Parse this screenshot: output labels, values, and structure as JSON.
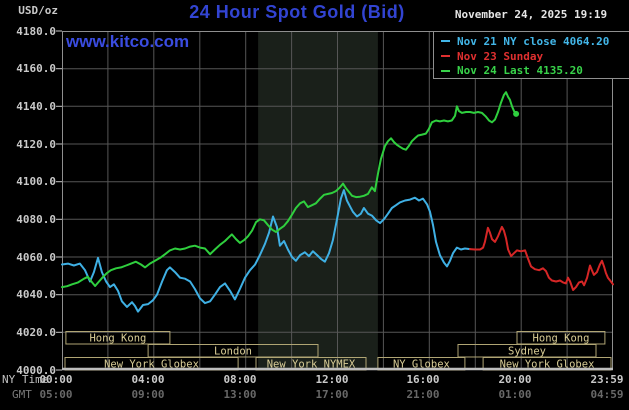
{
  "header": {
    "units_label": "USD/oz",
    "title": "24 Hour Spot Gold (Bid)",
    "timestamp": "November 24, 2025 19:19",
    "watermark": "www.kitco.com"
  },
  "legend": {
    "items": [
      {
        "label": "Nov 21 NY close 4064.20",
        "color": "#42b6e8"
      },
      {
        "label": "Nov 23 Sunday",
        "color": "#e03030"
      },
      {
        "label": "Nov 24 Last 4135.20",
        "color": "#38d24a"
      }
    ]
  },
  "axes": {
    "y_ticks": [
      "4180.0",
      "4160.0",
      "4140.0",
      "4120.0",
      "4100.0",
      "4080.0",
      "4060.0",
      "4040.0",
      "4020.0",
      "4000.0"
    ],
    "x_row1_label": "NY Time",
    "x_row2_label": "GMT",
    "x_tick_hours": [
      0,
      4,
      8,
      12,
      16,
      20,
      23.983
    ],
    "x_ticks_ny": [
      "00:00",
      "04:00",
      "08:00",
      "12:00",
      "16:00",
      "20:00",
      "23:59"
    ],
    "x_ticks_gmt": [
      "05:00",
      "09:00",
      "13:00",
      "17:00",
      "21:00",
      "01:00",
      "04:59"
    ]
  },
  "chart_data": {
    "type": "line",
    "title": "24 Hour Spot Gold (Bid)",
    "ylabel": "USD/oz",
    "ylim": [
      4000,
      4180
    ],
    "y_grid_step": 20,
    "x_hours": [
      0,
      24
    ],
    "x_grid_step_hours": 2,
    "grid": true,
    "legend_position": "top-right",
    "grid_color": "#565656",
    "border_color": "#8f8f8f",
    "bottom_border_color": "#bdbdbd",
    "shaded_session_hours": [
      8.54,
      13.76
    ],
    "shaded_band_color": "#1a201a",
    "series": [
      {
        "name": "Nov 21 NY close",
        "close_value": 4064.2,
        "color": "#3fb0e4",
        "points": [
          [
            0,
            4056
          ],
          [
            0.26,
            4056.5
          ],
          [
            0.52,
            4055.5
          ],
          [
            0.78,
            4056.5
          ],
          [
            1.0,
            4053
          ],
          [
            1.22,
            4047
          ],
          [
            1.39,
            4052
          ],
          [
            1.57,
            4059.5
          ],
          [
            1.74,
            4052
          ],
          [
            1.92,
            4047
          ],
          [
            2.09,
            4044
          ],
          [
            2.26,
            4045.5
          ],
          [
            2.44,
            4042
          ],
          [
            2.61,
            4036.5
          ],
          [
            2.83,
            4033.5
          ],
          [
            3.05,
            4036
          ],
          [
            3.18,
            4034
          ],
          [
            3.31,
            4031
          ],
          [
            3.53,
            4034.5
          ],
          [
            3.75,
            4035
          ],
          [
            3.96,
            4037
          ],
          [
            4.14,
            4040
          ],
          [
            4.36,
            4047
          ],
          [
            4.57,
            4053
          ],
          [
            4.7,
            4054.5
          ],
          [
            4.92,
            4052
          ],
          [
            5.14,
            4049
          ],
          [
            5.36,
            4048.5
          ],
          [
            5.58,
            4047
          ],
          [
            5.79,
            4043
          ],
          [
            6.01,
            4038
          ],
          [
            6.23,
            4035.5
          ],
          [
            6.45,
            4036.5
          ],
          [
            6.66,
            4040
          ],
          [
            6.88,
            4044
          ],
          [
            7.1,
            4046
          ],
          [
            7.32,
            4042
          ],
          [
            7.53,
            4037.5
          ],
          [
            7.75,
            4043
          ],
          [
            7.97,
            4049
          ],
          [
            8.19,
            4053
          ],
          [
            8.41,
            4056
          ],
          [
            8.62,
            4061
          ],
          [
            8.84,
            4067
          ],
          [
            9.02,
            4073
          ],
          [
            9.19,
            4081.5
          ],
          [
            9.36,
            4076
          ],
          [
            9.49,
            4066
          ],
          [
            9.67,
            4068.5
          ],
          [
            9.84,
            4064
          ],
          [
            10.02,
            4060
          ],
          [
            10.19,
            4058
          ],
          [
            10.37,
            4061
          ],
          [
            10.58,
            4062.5
          ],
          [
            10.76,
            4060.5
          ],
          [
            10.93,
            4063
          ],
          [
            11.11,
            4061
          ],
          [
            11.28,
            4059
          ],
          [
            11.45,
            4057.5
          ],
          [
            11.63,
            4062
          ],
          [
            11.8,
            4069
          ],
          [
            11.98,
            4080
          ],
          [
            12.15,
            4091
          ],
          [
            12.28,
            4095.5
          ],
          [
            12.41,
            4090
          ],
          [
            12.54,
            4087
          ],
          [
            12.67,
            4084
          ],
          [
            12.85,
            4081.5
          ],
          [
            13.02,
            4083
          ],
          [
            13.15,
            4086
          ],
          [
            13.33,
            4083
          ],
          [
            13.5,
            4082
          ],
          [
            13.68,
            4079.5
          ],
          [
            13.85,
            4078
          ],
          [
            14.02,
            4080
          ],
          [
            14.2,
            4083
          ],
          [
            14.37,
            4086
          ],
          [
            14.55,
            4087.5
          ],
          [
            14.72,
            4089
          ],
          [
            14.94,
            4090
          ],
          [
            15.16,
            4090.5
          ],
          [
            15.37,
            4091.5
          ],
          [
            15.55,
            4090
          ],
          [
            15.72,
            4091
          ],
          [
            15.9,
            4088
          ],
          [
            16.03,
            4084
          ],
          [
            16.16,
            4077
          ],
          [
            16.29,
            4068
          ],
          [
            16.46,
            4061
          ],
          [
            16.64,
            4057
          ],
          [
            16.77,
            4055
          ],
          [
            16.9,
            4058
          ],
          [
            17.03,
            4062
          ],
          [
            17.2,
            4065
          ],
          [
            17.38,
            4064
          ],
          [
            17.55,
            4064.5
          ],
          [
            17.77,
            4064.2
          ]
        ]
      },
      {
        "name": "Nov 23 Sunday",
        "color": "#d62626",
        "points": [
          [
            17.77,
            4064.2
          ],
          [
            17.99,
            4064
          ],
          [
            18.21,
            4064
          ],
          [
            18.34,
            4065
          ],
          [
            18.42,
            4068
          ],
          [
            18.55,
            4075.5
          ],
          [
            18.64,
            4073
          ],
          [
            18.73,
            4069.5
          ],
          [
            18.86,
            4068
          ],
          [
            18.99,
            4071
          ],
          [
            19.16,
            4076
          ],
          [
            19.25,
            4074
          ],
          [
            19.34,
            4070
          ],
          [
            19.43,
            4064
          ],
          [
            19.56,
            4060.5
          ],
          [
            19.69,
            4062
          ],
          [
            19.82,
            4063.5
          ],
          [
            19.99,
            4063
          ],
          [
            20.17,
            4063.5
          ],
          [
            20.3,
            4059
          ],
          [
            20.43,
            4055
          ],
          [
            20.6,
            4053.5
          ],
          [
            20.78,
            4053
          ],
          [
            20.95,
            4054
          ],
          [
            21.08,
            4052.5
          ],
          [
            21.21,
            4049
          ],
          [
            21.34,
            4047.5
          ],
          [
            21.52,
            4047
          ],
          [
            21.69,
            4047.5
          ],
          [
            21.82,
            4046.5
          ],
          [
            21.95,
            4046
          ],
          [
            22.04,
            4049
          ],
          [
            22.13,
            4047
          ],
          [
            22.26,
            4042.5
          ],
          [
            22.39,
            4044
          ],
          [
            22.52,
            4046.5
          ],
          [
            22.65,
            4047
          ],
          [
            22.74,
            4045
          ],
          [
            22.87,
            4049
          ],
          [
            23.0,
            4055.5
          ],
          [
            23.08,
            4053
          ],
          [
            23.17,
            4050.5
          ],
          [
            23.3,
            4052
          ],
          [
            23.43,
            4056
          ],
          [
            23.52,
            4058
          ],
          [
            23.61,
            4055
          ],
          [
            23.69,
            4051.5
          ],
          [
            23.78,
            4049
          ],
          [
            23.91,
            4047
          ],
          [
            24.0,
            4045.5
          ]
        ]
      },
      {
        "name": "Nov 24 Last",
        "last_value": 4135.2,
        "color": "#2fcf3e",
        "end_marker": true,
        "points": [
          [
            0,
            4044
          ],
          [
            0.22,
            4044.5
          ],
          [
            0.44,
            4045.5
          ],
          [
            0.7,
            4046.5
          ],
          [
            0.96,
            4048.5
          ],
          [
            1.13,
            4049.5
          ],
          [
            1.31,
            4046.5
          ],
          [
            1.44,
            4044.6
          ],
          [
            1.61,
            4047
          ],
          [
            1.79,
            4049.5
          ],
          [
            1.96,
            4051.5
          ],
          [
            2.13,
            4053
          ],
          [
            2.35,
            4054
          ],
          [
            2.57,
            4054.5
          ],
          [
            2.79,
            4055.5
          ],
          [
            3.01,
            4056.5
          ],
          [
            3.22,
            4057.5
          ],
          [
            3.44,
            4056
          ],
          [
            3.62,
            4054.5
          ],
          [
            3.83,
            4056.5
          ],
          [
            4.05,
            4058
          ],
          [
            4.27,
            4059.5
          ],
          [
            4.49,
            4061.5
          ],
          [
            4.7,
            4063.5
          ],
          [
            4.92,
            4064.5
          ],
          [
            5.14,
            4064
          ],
          [
            5.36,
            4064.5
          ],
          [
            5.58,
            4065.5
          ],
          [
            5.79,
            4066
          ],
          [
            6.01,
            4065
          ],
          [
            6.23,
            4064.5
          ],
          [
            6.45,
            4061.5
          ],
          [
            6.66,
            4064
          ],
          [
            6.88,
            4066.5
          ],
          [
            7.1,
            4068.5
          ],
          [
            7.27,
            4070.5
          ],
          [
            7.4,
            4072
          ],
          [
            7.58,
            4069.5
          ],
          [
            7.75,
            4067.5
          ],
          [
            7.93,
            4069
          ],
          [
            8.1,
            4071
          ],
          [
            8.28,
            4074
          ],
          [
            8.45,
            4078.5
          ],
          [
            8.62,
            4080
          ],
          [
            8.8,
            4079.5
          ],
          [
            8.97,
            4077
          ],
          [
            9.15,
            4074.5
          ],
          [
            9.32,
            4073.3
          ],
          [
            9.49,
            4075
          ],
          [
            9.67,
            4076.5
          ],
          [
            9.84,
            4079
          ],
          [
            10.02,
            4082.5
          ],
          [
            10.19,
            4086
          ],
          [
            10.37,
            4088.5
          ],
          [
            10.54,
            4089.5
          ],
          [
            10.71,
            4086.5
          ],
          [
            10.89,
            4087.5
          ],
          [
            11.06,
            4088.5
          ],
          [
            11.24,
            4091
          ],
          [
            11.41,
            4093
          ],
          [
            11.59,
            4093.5
          ],
          [
            11.76,
            4094
          ],
          [
            11.93,
            4095
          ],
          [
            12.11,
            4097
          ],
          [
            12.24,
            4099
          ],
          [
            12.37,
            4096.5
          ],
          [
            12.5,
            4094.5
          ],
          [
            12.63,
            4092.5
          ],
          [
            12.81,
            4091.8
          ],
          [
            12.98,
            4092
          ],
          [
            13.15,
            4092.5
          ],
          [
            13.33,
            4093.5
          ],
          [
            13.5,
            4097
          ],
          [
            13.63,
            4095
          ],
          [
            13.76,
            4104
          ],
          [
            13.89,
            4112
          ],
          [
            14.07,
            4119
          ],
          [
            14.2,
            4121.5
          ],
          [
            14.33,
            4123
          ],
          [
            14.46,
            4121
          ],
          [
            14.59,
            4119.5
          ],
          [
            14.72,
            4118.5
          ],
          [
            14.85,
            4117.5
          ],
          [
            14.98,
            4117
          ],
          [
            15.11,
            4119
          ],
          [
            15.24,
            4121.5
          ],
          [
            15.37,
            4123
          ],
          [
            15.51,
            4124.5
          ],
          [
            15.68,
            4125
          ],
          [
            15.85,
            4125.5
          ],
          [
            15.98,
            4128
          ],
          [
            16.11,
            4131.5
          ],
          [
            16.29,
            4132.5
          ],
          [
            16.46,
            4132
          ],
          [
            16.64,
            4132.5
          ],
          [
            16.81,
            4132
          ],
          [
            16.98,
            4132.5
          ],
          [
            17.12,
            4135
          ],
          [
            17.2,
            4140
          ],
          [
            17.29,
            4137.5
          ],
          [
            17.42,
            4136.5
          ],
          [
            17.6,
            4137
          ],
          [
            17.77,
            4137
          ],
          [
            17.94,
            4136.5
          ],
          [
            18.12,
            4137
          ],
          [
            18.29,
            4136.5
          ],
          [
            18.47,
            4134.5
          ],
          [
            18.6,
            4132.5
          ],
          [
            18.73,
            4131.5
          ],
          [
            18.86,
            4133
          ],
          [
            18.99,
            4137
          ],
          [
            19.12,
            4142
          ],
          [
            19.25,
            4146
          ],
          [
            19.34,
            4147.5
          ],
          [
            19.43,
            4145
          ],
          [
            19.51,
            4143.5
          ],
          [
            19.6,
            4140
          ],
          [
            19.69,
            4137.5
          ],
          [
            19.78,
            4136
          ]
        ]
      }
    ],
    "sessions": {
      "text_color": "#d9cd96",
      "border_color": "#b0a574",
      "rows": [
        {
          "boxes": [
            {
              "label": "Hong Kong",
              "start": 0.17,
              "end": 4.7
            },
            {
              "label": "Hong Kong",
              "start": 19.82,
              "end": 23.65
            }
          ]
        },
        {
          "boxes": [
            {
              "label": "London",
              "start": 3.75,
              "end": 11.15
            },
            {
              "label": "Sydney",
              "start": 17.25,
              "end": 23.26
            }
          ]
        },
        {
          "boxes": [
            {
              "label": "New York Globex",
              "start": 0.13,
              "end": 7.67
            },
            {
              "label": "New York NYMEX",
              "start": 8.45,
              "end": 13.24
            },
            {
              "label": "NY Globex",
              "start": 13.76,
              "end": 17.55
            },
            {
              "label": "New York Globex",
              "start": 18.34,
              "end": 23.91
            }
          ]
        }
      ]
    }
  }
}
